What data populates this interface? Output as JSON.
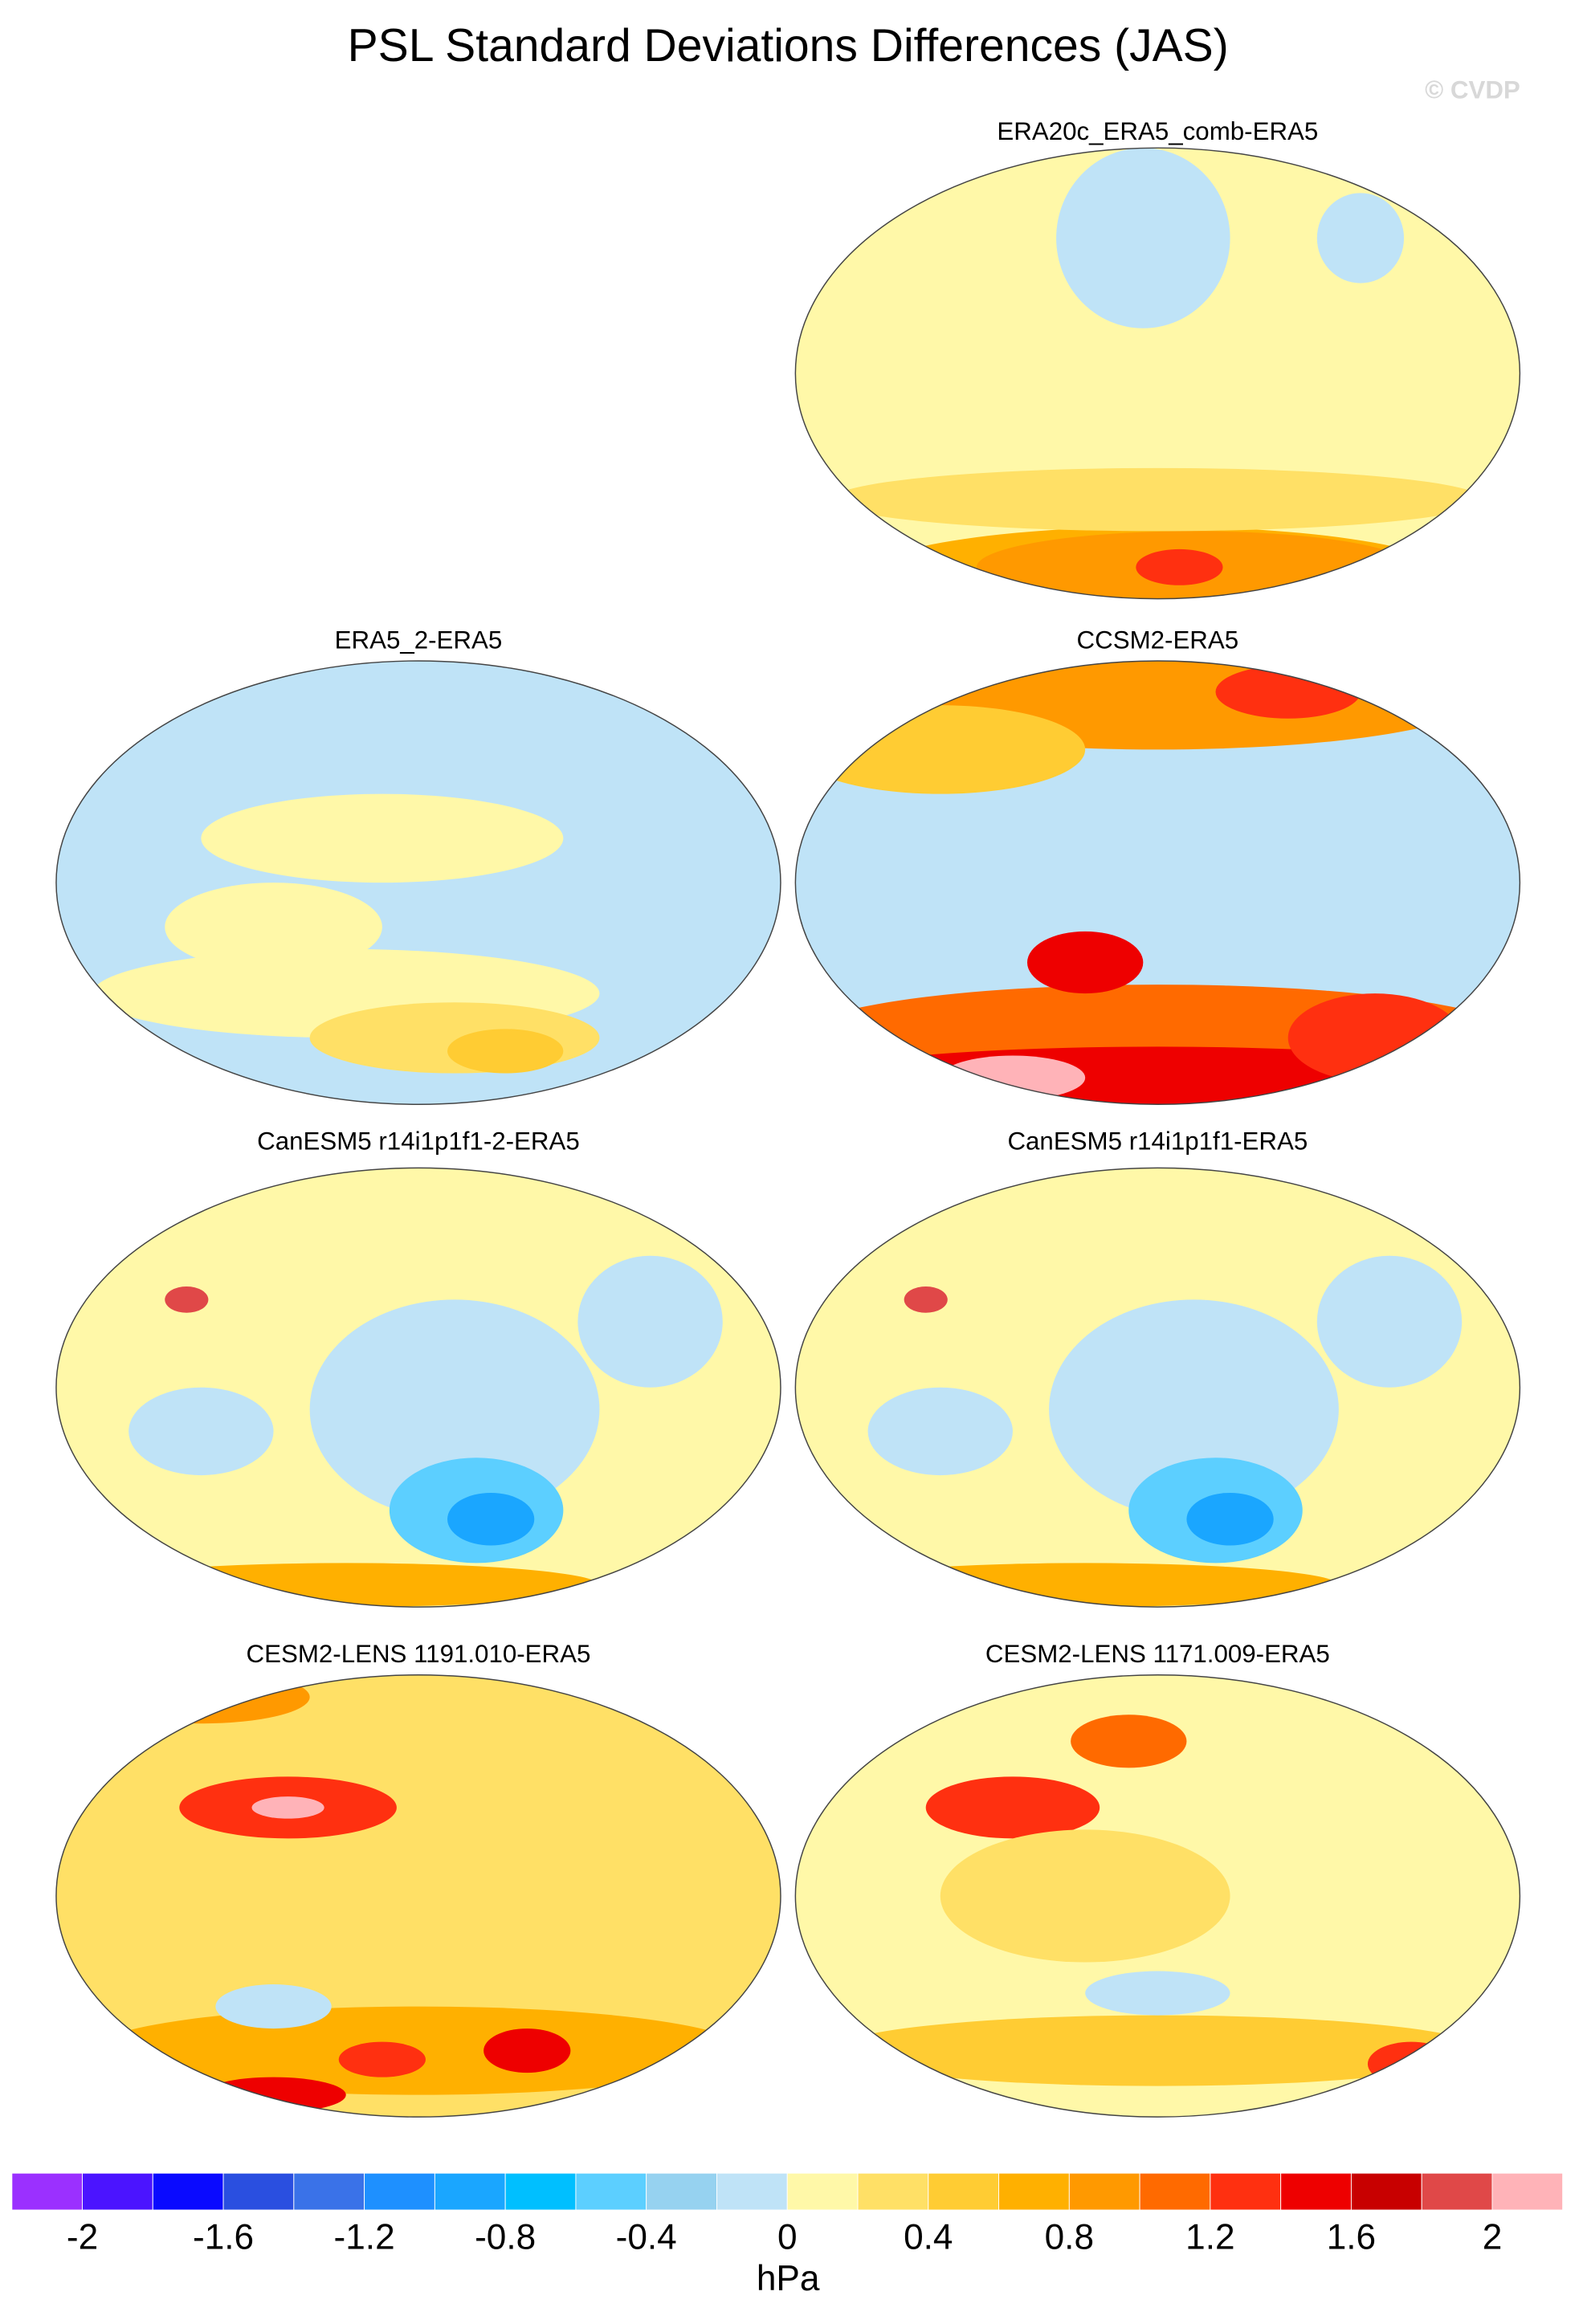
{
  "chart_data": {
    "type": "map-panels",
    "title": "PSL Standard Deviations Differences (JAS)",
    "watermark": "© CVDP",
    "panels": [
      {
        "title": "ERA20c_ERA5_comb-ERA5"
      },
      {
        "title": "ERA5_2-ERA5"
      },
      {
        "title": "CCSM2-ERA5"
      },
      {
        "title": "CanESM5 r14i1p1f1-2-ERA5"
      },
      {
        "title": "CanESM5 r14i1p1f1-ERA5"
      },
      {
        "title": "CESM2-LENS 1191.010-ERA5"
      },
      {
        "title": "CESM2-LENS 1171.009-ERA5"
      }
    ],
    "colorbar": {
      "label": "hPa",
      "lim": [
        -2.2,
        2.2
      ],
      "ticks": [
        -2,
        -1.6,
        -1.2,
        -0.8,
        -0.4,
        0,
        0.4,
        0.8,
        1.2,
        1.6,
        2
      ],
      "colors": [
        "#9b30ff",
        "#4b14ff",
        "#0a0aff",
        "#2a4fe0",
        "#3a72e8",
        "#1e90ff",
        "#1aa6ff",
        "#00bfff",
        "#5ccfff",
        "#96d2f0",
        "#bfe3f7",
        "#fff8a8",
        "#ffe066",
        "#ffcc33",
        "#ffb000",
        "#ff9900",
        "#ff6a00",
        "#ff3010",
        "#ee0000",
        "#c80000",
        "#e04848",
        "#ffb3b8"
      ]
    }
  }
}
